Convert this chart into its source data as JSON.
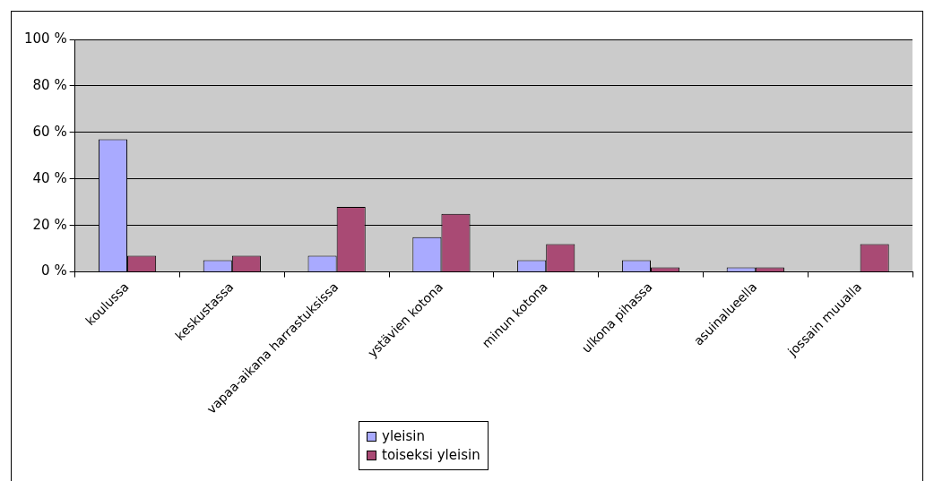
{
  "chart_data": {
    "type": "bar",
    "categories": [
      "koulussa",
      "keskustassa",
      "vapaa-aikana harrastuksissa",
      "ystävien kotona",
      "minun kotona",
      "ulkona pihassa",
      "asuinalueella",
      "jossain muualla"
    ],
    "series": [
      {
        "name": "yleisin",
        "color": "#a9aaff",
        "values": [
          57,
          5,
          7,
          15,
          5,
          5,
          2,
          0
        ]
      },
      {
        "name": "toiseksi yleisin",
        "color": "#a94a74",
        "values": [
          7,
          7,
          28,
          25,
          12,
          2,
          2,
          12
        ]
      }
    ],
    "ylim": [
      0,
      100
    ],
    "yticks": [
      {
        "value": 0,
        "label": "0 %"
      },
      {
        "value": 20,
        "label": "20 %"
      },
      {
        "value": 40,
        "label": "40 %"
      },
      {
        "value": 60,
        "label": "60 %"
      },
      {
        "value": 80,
        "label": "80 %"
      },
      {
        "value": 100,
        "label": "100 %"
      }
    ],
    "grid": "y",
    "legend": "bottom"
  }
}
